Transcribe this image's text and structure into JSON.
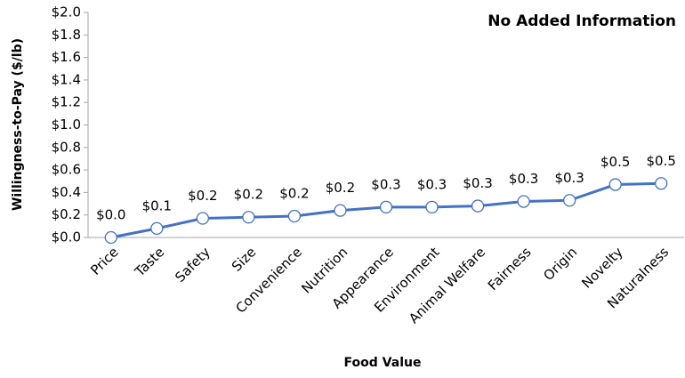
{
  "chart_data": {
    "type": "line",
    "title": "No Added Information",
    "x_label": "Food Value",
    "y_label": "Willingness-to-Pay ($/lb)",
    "categories": [
      "Price",
      "Taste",
      "Safety",
      "Size",
      "Convenience",
      "Nutrition",
      "Appearance",
      "Environment",
      "Animal Welfare",
      "Fairness",
      "Origin",
      "Novelty",
      "Naturalness"
    ],
    "series": [
      {
        "name": "Willingness-to-Pay",
        "color": "#4472c4",
        "values": [
          0.0,
          0.08,
          0.17,
          0.18,
          0.19,
          0.24,
          0.27,
          0.27,
          0.28,
          0.32,
          0.33,
          0.47,
          0.48
        ],
        "value_labels": [
          "$0.0",
          "$0.1",
          "$0.2",
          "$0.2",
          "$0.2",
          "$0.2",
          "$0.3",
          "$0.3",
          "$0.3",
          "$0.3",
          "$0.3",
          "$0.5",
          "$0.5"
        ]
      }
    ],
    "ylim": [
      0,
      2.0
    ],
    "yticks": [
      {
        "value": 0.0,
        "label": "$0.0"
      },
      {
        "value": 0.2,
        "label": "$0.2"
      },
      {
        "value": 0.4,
        "label": "$0.4"
      },
      {
        "value": 0.6,
        "label": "$0.6"
      },
      {
        "value": 0.8,
        "label": "$0.8"
      },
      {
        "value": 1.0,
        "label": "$1.0"
      },
      {
        "value": 1.2,
        "label": "$1.2"
      },
      {
        "value": 1.4,
        "label": "$1.4"
      },
      {
        "value": 1.6,
        "label": "$1.6"
      },
      {
        "value": 1.8,
        "label": "$1.8"
      },
      {
        "value": 2.0,
        "label": "$2.0"
      }
    ],
    "grid": false
  }
}
